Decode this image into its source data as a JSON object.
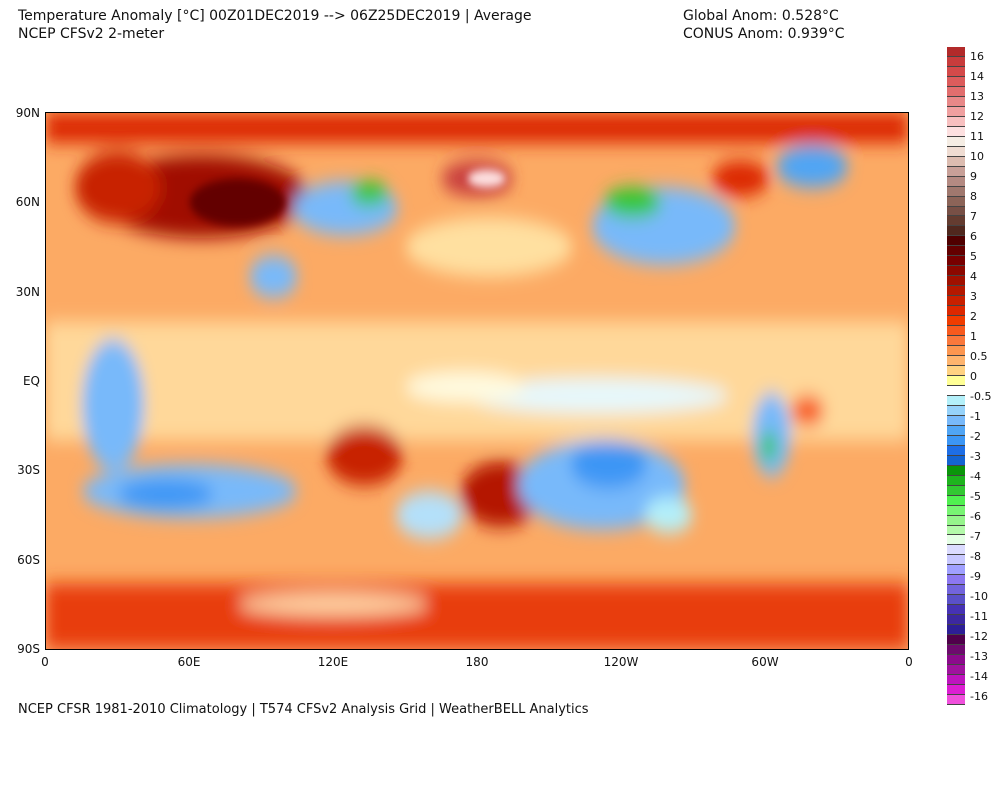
{
  "header": {
    "title": "Temperature Anomaly [°C] 00Z01DEC2019 --> 06Z25DEC2019 | Average",
    "subtitle": "NCEP CFSv2 2-meter",
    "global_anom": "Global Anom: 0.528°C",
    "conus_anom": "CONUS Anom: 0.939°C"
  },
  "map": {
    "projection": "equirectangular",
    "lat_labels": [
      "90N",
      "60N",
      "30N",
      "EQ",
      "30S",
      "60S",
      "90S"
    ],
    "lon_labels": [
      "0",
      "60E",
      "120E",
      "180",
      "120W",
      "60W",
      "0"
    ]
  },
  "colorbar": {
    "labels": [
      "16",
      "14",
      "13",
      "12",
      "11",
      "10",
      "9",
      "8",
      "7",
      "6",
      "5",
      "4",
      "3",
      "2",
      "1",
      "0.5",
      "0",
      "-0.5",
      "-1",
      "-2",
      "-3",
      "-4",
      "-5",
      "-6",
      "-7",
      "-8",
      "-9",
      "-10",
      "-11",
      "-12",
      "-13",
      "-14",
      "-16"
    ],
    "colors": [
      "#b22a2a",
      "#c83c3c",
      "#d44a4a",
      "#dc5c5c",
      "#e26e6e",
      "#e88888",
      "#f0a0a0",
      "#f8c0c0",
      "#fde0e0",
      "#f5ede4",
      "#efdcd2",
      "#dcbcb0",
      "#c8a098",
      "#b48a82",
      "#a0786e",
      "#8c6458",
      "#785046",
      "#643c30",
      "#50281e",
      "#500000",
      "#640000",
      "#780000",
      "#8c0800",
      "#a01000",
      "#b41800",
      "#c82000",
      "#dc2800",
      "#f03c00",
      "#f85a1e",
      "#fa783c",
      "#fc9650",
      "#feb46e",
      "#ffd282",
      "#ffff96",
      "#ffffff",
      "#b4f0fa",
      "#96d2fa",
      "#78b9fa",
      "#50a5f5",
      "#3c96f5",
      "#1e6ee6",
      "#1464d2",
      "#0a960a",
      "#1eb41e",
      "#32c832",
      "#50f050",
      "#78f573",
      "#96f58c",
      "#b4faaa",
      "#e6ffe6",
      "#dcdcff",
      "#c8c8ff",
      "#a0a0ff",
      "#8c78f0",
      "#7264dc",
      "#5a50c8",
      "#4632b4",
      "#3c28a0",
      "#2d1e96",
      "#50004b",
      "#6e0a6e",
      "#8c0a8c",
      "#a0129e",
      "#be14be",
      "#dc1ed2",
      "#f050dc"
    ]
  },
  "footer": "NCEP CFSR 1981-2010 Climatology | T574 CFSv2 Analysis Grid | WeatherBELL Analytics"
}
